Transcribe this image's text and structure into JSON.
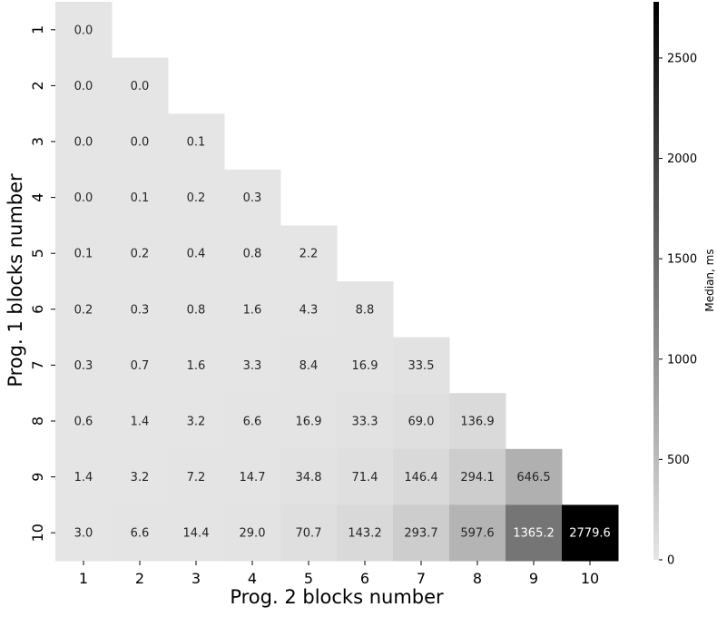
{
  "chart_data": {
    "type": "heatmap",
    "title": "",
    "xlabel": "Prog. 2 blocks number",
    "ylabel": "Prog. 1 blocks number",
    "x_categories": [
      "1",
      "2",
      "3",
      "4",
      "5",
      "6",
      "7",
      "8",
      "9",
      "10"
    ],
    "y_categories": [
      "1",
      "2",
      "3",
      "4",
      "5",
      "6",
      "7",
      "8",
      "9",
      "10"
    ],
    "values": [
      [
        0.0
      ],
      [
        0.0,
        0.0
      ],
      [
        0.0,
        0.0,
        0.1
      ],
      [
        0.0,
        0.1,
        0.2,
        0.3
      ],
      [
        0.1,
        0.2,
        0.4,
        0.8,
        2.2
      ],
      [
        0.2,
        0.3,
        0.8,
        1.6,
        4.3,
        8.8
      ],
      [
        0.3,
        0.7,
        1.6,
        3.3,
        8.4,
        16.9,
        33.5
      ],
      [
        0.6,
        1.4,
        3.2,
        6.6,
        16.9,
        33.3,
        69.0,
        136.9
      ],
      [
        1.4,
        3.2,
        7.2,
        14.7,
        34.8,
        71.4,
        146.4,
        294.1,
        646.5
      ],
      [
        3.0,
        6.6,
        14.4,
        29.0,
        70.7,
        143.2,
        293.7,
        597.6,
        1365.2,
        2779.6
      ]
    ],
    "value_format": "one decimal",
    "colorbar": {
      "label": "Median, ms",
      "range": [
        0,
        2780
      ],
      "ticks": [
        0,
        500,
        1000,
        1500,
        2000,
        2500
      ],
      "colormap": "light gray to black"
    },
    "grid": false,
    "colors": {
      "low": "#e5e5e5",
      "high": "#000000"
    }
  }
}
